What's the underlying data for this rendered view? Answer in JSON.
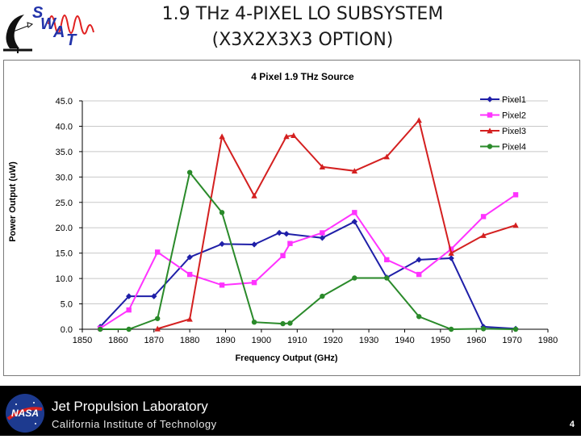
{
  "slide": {
    "title_line1": "1.9 THz 4-PIXEL LO SUBSYSTEM",
    "title_line2": "(X3X2X3X3 OPTION)",
    "logo_text_s": "S",
    "logo_text_w": "W",
    "logo_text_a": "A",
    "logo_text_t": "T",
    "page_number": "4"
  },
  "footer": {
    "lab_name": "Jet Propulsion Laboratory",
    "institute": "California Institute of Technology",
    "nasa_label": "NASA"
  },
  "colors": {
    "pixel1": "#1f1fa8",
    "pixel2": "#ff33ff",
    "pixel3": "#d42020",
    "pixel4": "#2a8a2a"
  },
  "chart_data": {
    "type": "line",
    "title": "4 Pixel 1.9 THz Source",
    "xlabel": "Frequency Output (GHz)",
    "ylabel": "Power Output (uW)",
    "xlim": [
      1850,
      1980
    ],
    "ylim": [
      0,
      45
    ],
    "x_ticks": [
      "1850",
      "1860",
      "1870",
      "1880",
      "1890",
      "1900",
      "1910",
      "1920",
      "1930",
      "1940",
      "1950",
      "1960",
      "1970",
      "1980"
    ],
    "y_ticks": [
      "0.0",
      "5.0",
      "10.0",
      "15.0",
      "20.0",
      "25.0",
      "30.0",
      "35.0",
      "40.0",
      "45.0"
    ],
    "legend_position": "top-right",
    "series": [
      {
        "name": "Pixel1",
        "marker": "diamond",
        "points": [
          [
            1855,
            0.5
          ],
          [
            1863,
            6.5
          ],
          [
            1870,
            6.5
          ],
          [
            1880,
            14.2
          ],
          [
            1889,
            16.8
          ],
          [
            1898,
            16.7
          ],
          [
            1905,
            19.0
          ],
          [
            1907,
            18.8
          ],
          [
            1917,
            18.0
          ],
          [
            1926,
            21.2
          ],
          [
            1935,
            10.2
          ],
          [
            1944,
            13.7
          ],
          [
            1953,
            14.0
          ],
          [
            1962,
            0.5
          ],
          [
            1971,
            0.1
          ]
        ]
      },
      {
        "name": "Pixel2",
        "marker": "square",
        "points": [
          [
            1855,
            0.2
          ],
          [
            1863,
            3.8
          ],
          [
            1871,
            15.2
          ],
          [
            1880,
            10.8
          ],
          [
            1889,
            8.7
          ],
          [
            1898,
            9.2
          ],
          [
            1906,
            14.5
          ],
          [
            1908,
            16.9
          ],
          [
            1917,
            19.0
          ],
          [
            1926,
            23.0
          ],
          [
            1935,
            13.7
          ],
          [
            1944,
            10.8
          ],
          [
            1953,
            15.8
          ],
          [
            1962,
            22.2
          ],
          [
            1971,
            26.5
          ]
        ]
      },
      {
        "name": "Pixel3",
        "marker": "triangle",
        "points": [
          [
            1871,
            0.1
          ],
          [
            1880,
            2.0
          ],
          [
            1889,
            38.0
          ],
          [
            1898,
            26.3
          ],
          [
            1907,
            38.0
          ],
          [
            1909,
            38.2
          ],
          [
            1917,
            32.0
          ],
          [
            1926,
            31.2
          ],
          [
            1935,
            34.0
          ],
          [
            1944,
            41.2
          ],
          [
            1953,
            15.0
          ],
          [
            1962,
            18.5
          ],
          [
            1971,
            20.5
          ]
        ]
      },
      {
        "name": "Pixel4",
        "marker": "circle",
        "points": [
          [
            1855,
            0.0
          ],
          [
            1863,
            0.0
          ],
          [
            1871,
            2.1
          ],
          [
            1880,
            30.9
          ],
          [
            1889,
            23.0
          ],
          [
            1898,
            1.4
          ],
          [
            1906,
            1.1
          ],
          [
            1908,
            1.2
          ],
          [
            1917,
            6.5
          ],
          [
            1926,
            10.1
          ],
          [
            1935,
            10.1
          ],
          [
            1944,
            2.5
          ],
          [
            1953,
            0.0
          ],
          [
            1962,
            0.1
          ],
          [
            1971,
            0.0
          ]
        ]
      }
    ]
  }
}
